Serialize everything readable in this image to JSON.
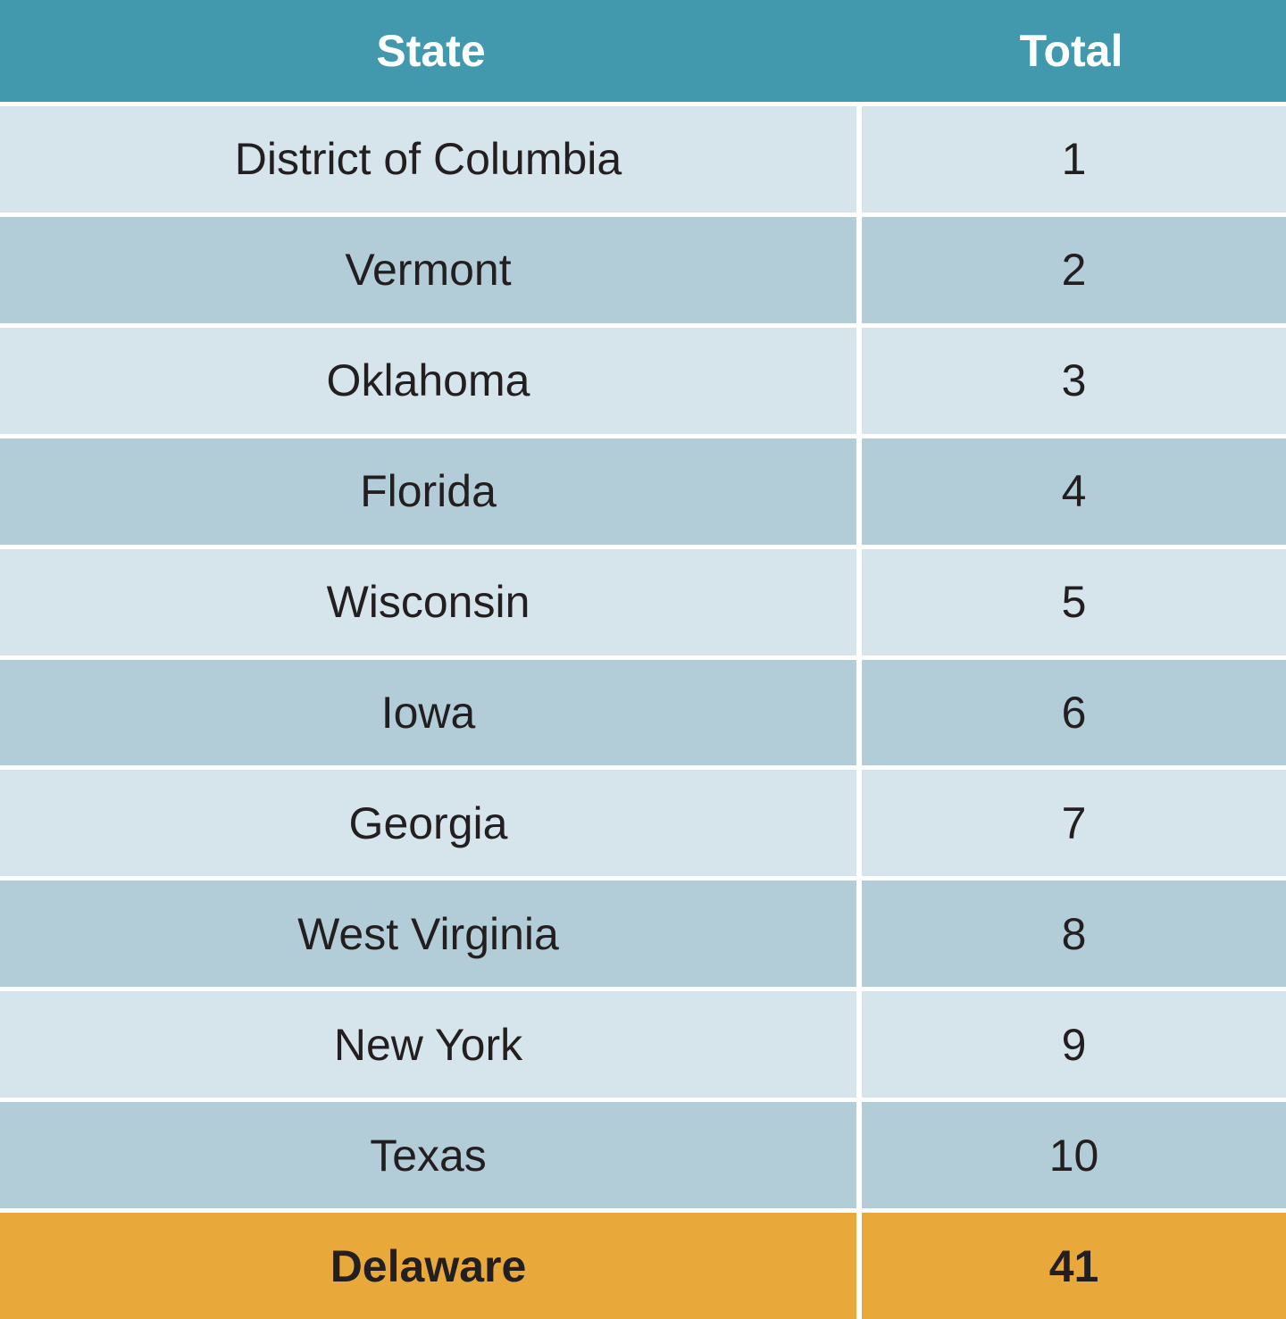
{
  "table": {
    "header": [
      "State",
      "Total"
    ],
    "rows": [
      [
        "District of Columbia",
        1
      ],
      [
        "Vermont",
        2
      ],
      [
        "Oklahoma",
        3
      ],
      [
        "Florida",
        4
      ],
      [
        "Wisconsin",
        5
      ],
      [
        "Iowa",
        6
      ],
      [
        "Georgia",
        7
      ],
      [
        "West Virginia",
        8
      ],
      [
        "New York",
        9
      ],
      [
        "Texas",
        10
      ]
    ],
    "highlighted_row": [
      "Delaware",
      41
    ]
  }
}
